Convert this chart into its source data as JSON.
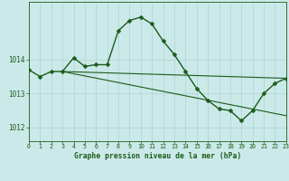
{
  "title": "Graphe pression niveau de la mer (hPa)",
  "bg_color": "#cce9e9",
  "grid_color": "#aad4d2",
  "line_color": "#1a5c1a",
  "xlim": [
    0,
    23
  ],
  "ylim": [
    1011.6,
    1015.7
  ],
  "yticks": [
    1012,
    1013,
    1014
  ],
  "xticks": [
    0,
    1,
    2,
    3,
    4,
    5,
    6,
    7,
    8,
    9,
    10,
    11,
    12,
    13,
    14,
    15,
    16,
    17,
    18,
    19,
    20,
    21,
    22,
    23
  ],
  "series_main": {
    "x": [
      0,
      1,
      2,
      3,
      4,
      5,
      6,
      7,
      8,
      9,
      10,
      11,
      12,
      13,
      14,
      15,
      16,
      17,
      18,
      19,
      20,
      21,
      22,
      23
    ],
    "y": [
      1013.7,
      1013.5,
      1013.65,
      1013.65,
      1014.05,
      1013.8,
      1013.85,
      1013.85,
      1014.85,
      1015.15,
      1015.25,
      1015.05,
      1014.55,
      1014.15,
      1013.65,
      1013.15,
      1012.8,
      1012.55,
      1012.5,
      1012.2,
      1012.5,
      1013.0,
      1013.3,
      1013.45
    ],
    "linewidth": 1.0,
    "markersize": 2.5
  },
  "series_flat": {
    "x": [
      3,
      23
    ],
    "y": [
      1013.65,
      1013.45
    ],
    "linewidth": 0.8
  },
  "series_diag": {
    "x": [
      3,
      23
    ],
    "y": [
      1013.65,
      1012.35
    ],
    "linewidth": 0.8
  },
  "figsize": [
    3.2,
    2.0
  ],
  "dpi": 100
}
